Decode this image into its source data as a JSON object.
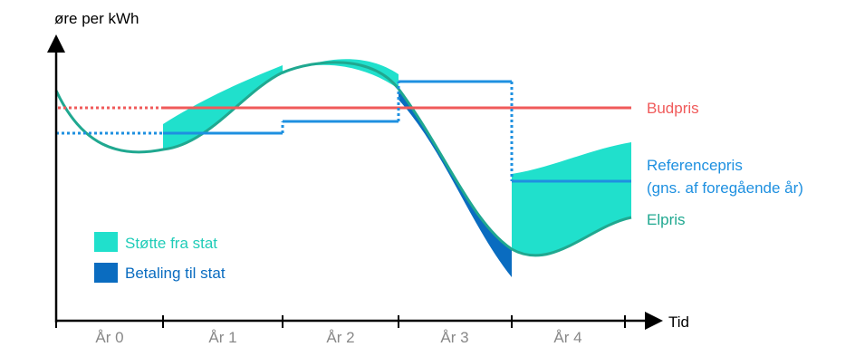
{
  "axes": {
    "y_label": "øre per kWh",
    "x_label": "Tid",
    "year_labels": [
      "År 0",
      "År 1",
      "År 2",
      "År 3",
      "År 4"
    ]
  },
  "labels": {
    "budpris": "Budpris",
    "referencepris_line1": "Referencepris",
    "referencepris_line2": "(gns. af foregående år)",
    "elpris": "Elpris"
  },
  "legend": {
    "support": "Støtte fra stat",
    "payment": "Betaling til stat"
  },
  "colors": {
    "budpris": "#f05a5a",
    "referencepris": "#1e90e0",
    "elpris": "#20a890",
    "support": "#20e0cc",
    "payment": "#0a6cc0"
  }
}
